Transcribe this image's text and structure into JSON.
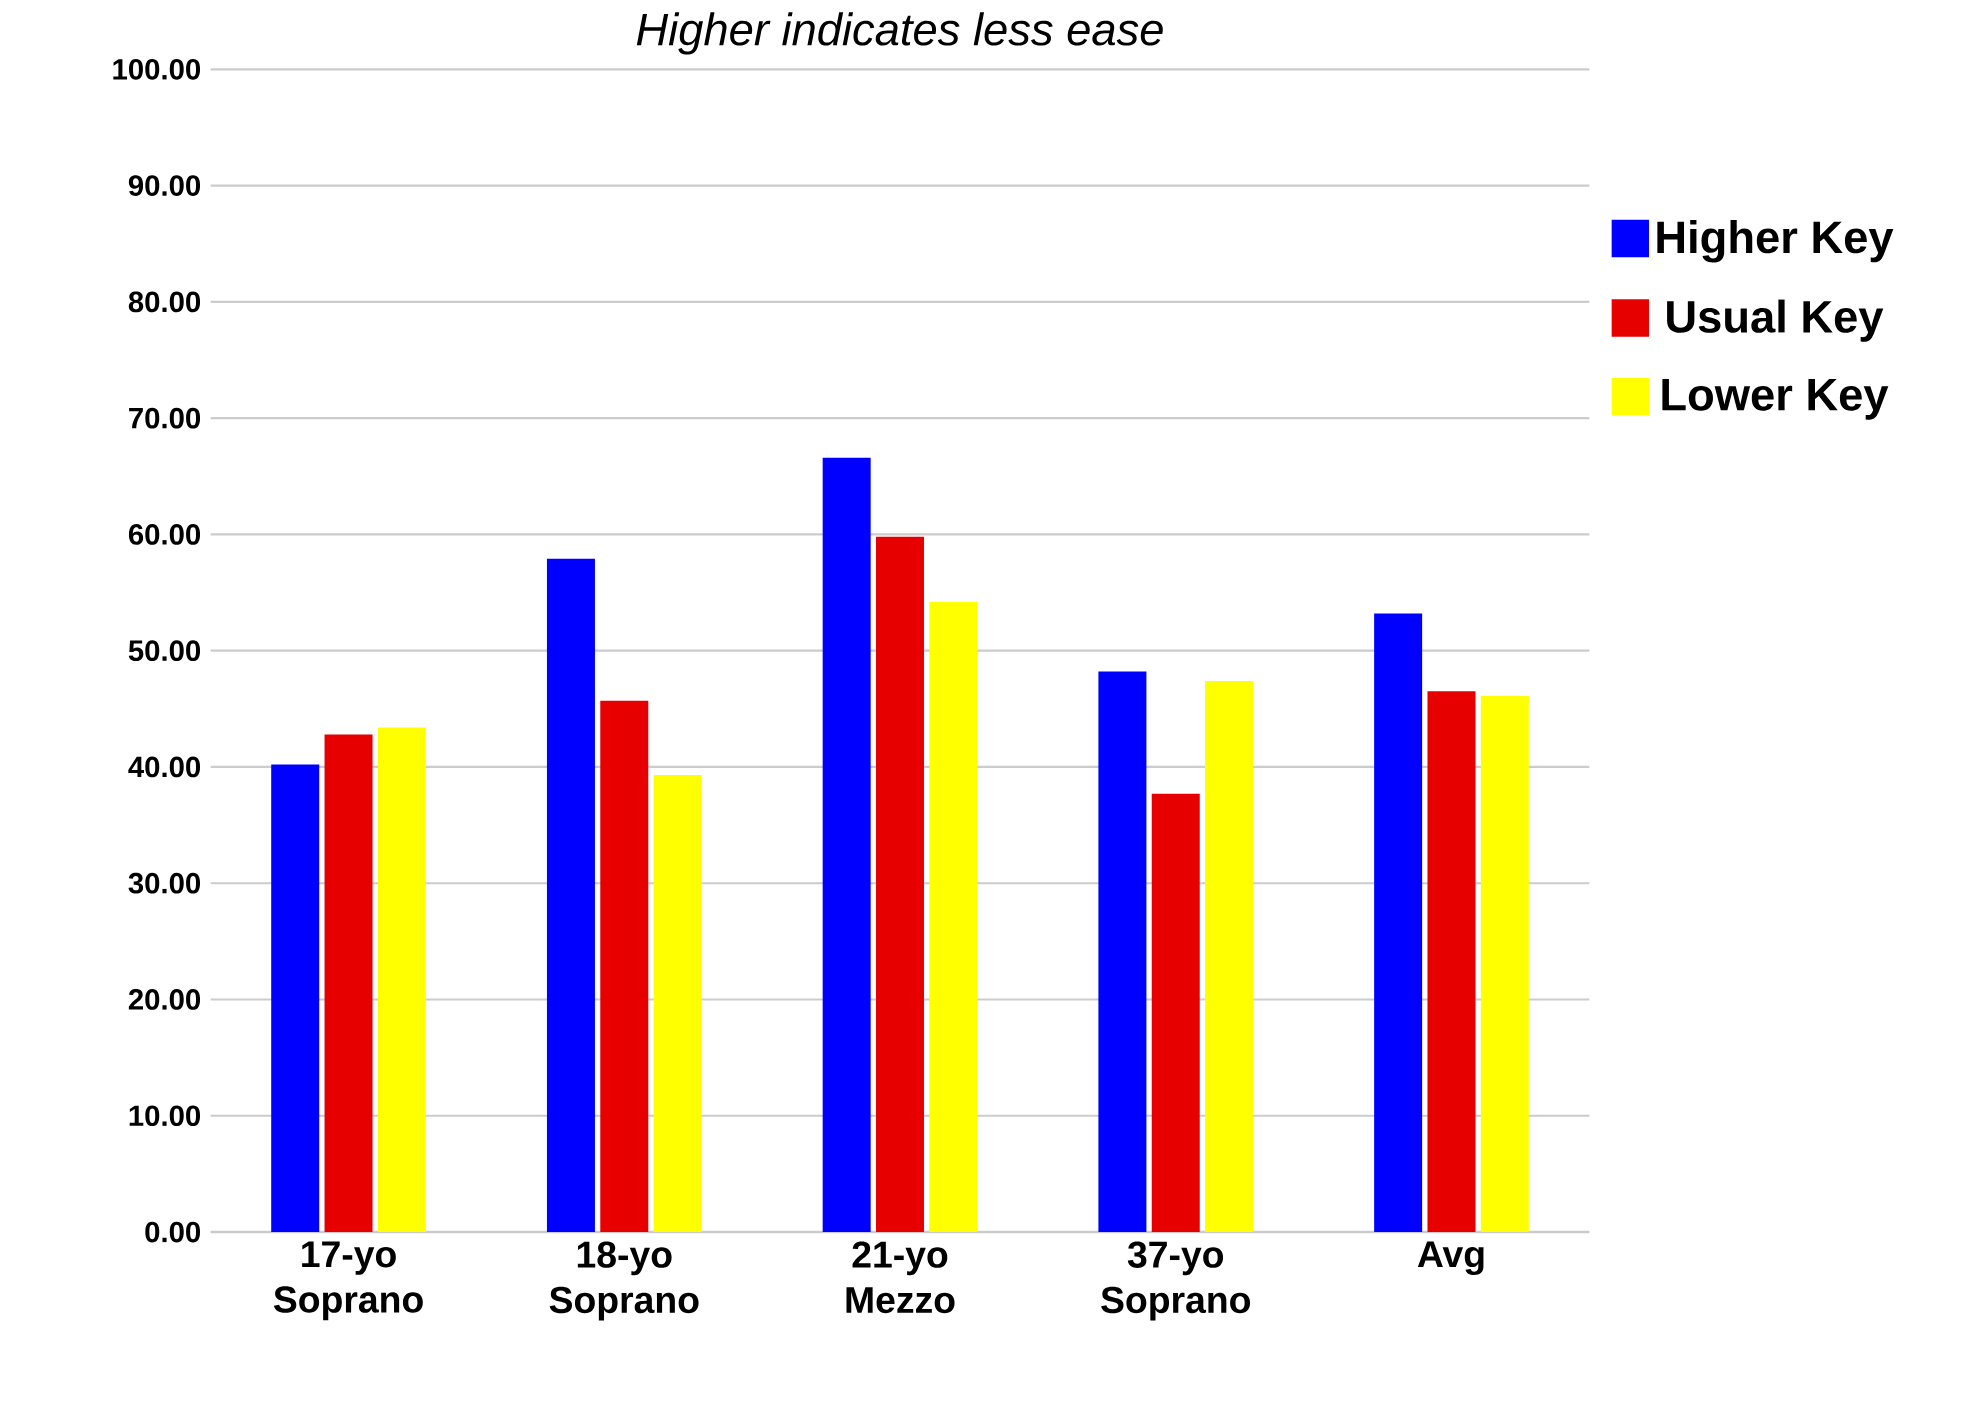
{
  "chart_data": {
    "type": "bar",
    "subtitle": "*Higher indicates less ease*",
    "categories": [
      "17-yo Soprano",
      "18-yo Soprano",
      "21-yo Mezzo",
      "37-yo Soprano",
      "Avg"
    ],
    "series": [
      {
        "name": "Higher Key",
        "color": "#0000ff",
        "values": [
          40.2,
          57.9,
          66.6,
          48.2,
          53.2
        ]
      },
      {
        "name": "Usual Key",
        "color": "#e60000",
        "values": [
          42.8,
          45.7,
          59.8,
          37.7,
          46.5
        ]
      },
      {
        "name": "Lower Key",
        "color": "#ffff00",
        "values": [
          43.4,
          39.3,
          54.2,
          47.4,
          46.1
        ]
      }
    ],
    "ylim": [
      0,
      100
    ],
    "yticks": [
      {
        "value": 0,
        "label": "0.00"
      },
      {
        "value": 10,
        "label": "10.00"
      },
      {
        "value": 20,
        "label": "20.00"
      },
      {
        "value": 30,
        "label": "30.00"
      },
      {
        "value": 40,
        "label": "40.00"
      },
      {
        "value": 50,
        "label": "50.00"
      },
      {
        "value": 60,
        "label": "60.00"
      },
      {
        "value": 70,
        "label": "70.00"
      },
      {
        "value": 80,
        "label": "80.00"
      },
      {
        "value": 90,
        "label": "90.00"
      },
      {
        "value": 100,
        "label": "100.00"
      }
    ],
    "grid": "y",
    "legend": "right"
  }
}
